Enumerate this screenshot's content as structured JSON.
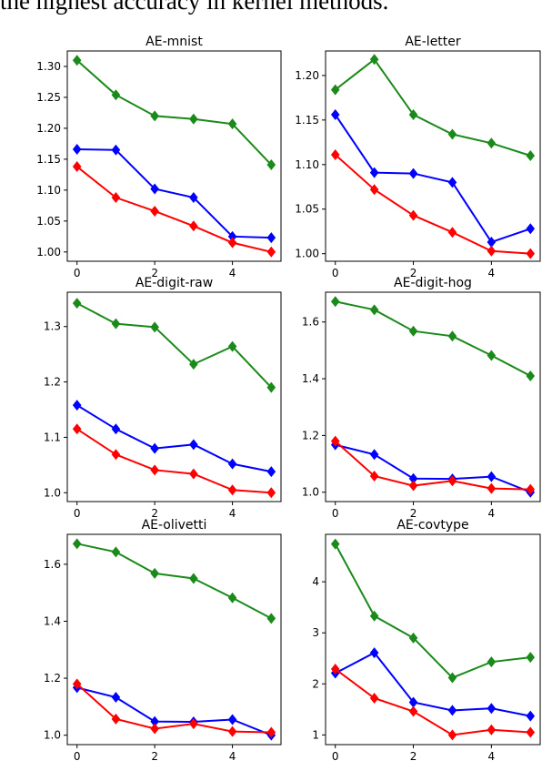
{
  "header_text": "the highest accuracy in kernel methods.",
  "colors": {
    "green": "#1a8a1a",
    "blue": "#0000ff",
    "red": "#ff0000"
  },
  "chart_data": [
    {
      "type": "line",
      "title": "AE-mnist",
      "x": [
        0,
        1,
        2,
        3,
        4,
        5
      ],
      "xticks": [
        "0",
        "2",
        "4"
      ],
      "xlim": [
        -0.25,
        5.25
      ],
      "ylim": [
        0.985,
        1.325
      ],
      "yticks": [
        "1.00",
        "1.05",
        "1.10",
        "1.15",
        "1.20",
        "1.25",
        "1.30"
      ],
      "series": [
        {
          "color": "green",
          "values": [
            1.31,
            1.254,
            1.22,
            1.215,
            1.207,
            1.141
          ]
        },
        {
          "color": "blue",
          "values": [
            1.166,
            1.165,
            1.102,
            1.088,
            1.025,
            1.023
          ]
        },
        {
          "color": "red",
          "values": [
            1.138,
            1.088,
            1.066,
            1.042,
            1.015,
            1.0
          ]
        }
      ]
    },
    {
      "type": "line",
      "title": "AE-letter",
      "x": [
        0,
        1,
        2,
        3,
        4,
        5
      ],
      "xticks": [
        "0",
        "2",
        "4"
      ],
      "xlim": [
        -0.25,
        5.25
      ],
      "ylim": [
        0.9915,
        1.2275
      ],
      "yticks": [
        "1.00",
        "1.05",
        "1.10",
        "1.15",
        "1.20"
      ],
      "series": [
        {
          "color": "green",
          "values": [
            1.184,
            1.218,
            1.156,
            1.134,
            1.124,
            1.11
          ]
        },
        {
          "color": "blue",
          "values": [
            1.156,
            1.091,
            1.09,
            1.08,
            1.013,
            1.028
          ]
        },
        {
          "color": "red",
          "values": [
            1.111,
            1.072,
            1.043,
            1.024,
            1.003,
            1.0
          ]
        }
      ]
    },
    {
      "type": "line",
      "title": "AE-digit-raw",
      "x": [
        0,
        1,
        2,
        3,
        4,
        5
      ],
      "xticks": [
        "0",
        "2",
        "4"
      ],
      "xlim": [
        -0.25,
        5.25
      ],
      "ylim": [
        0.984,
        1.362
      ],
      "yticks": [
        "1.0",
        "1.1",
        "1.2",
        "1.3"
      ],
      "series": [
        {
          "color": "green",
          "values": [
            1.342,
            1.305,
            1.299,
            1.232,
            1.264,
            1.19
          ]
        },
        {
          "color": "blue",
          "values": [
            1.158,
            1.115,
            1.08,
            1.087,
            1.052,
            1.038
          ]
        },
        {
          "color": "red",
          "values": [
            1.115,
            1.069,
            1.041,
            1.034,
            1.005,
            1.0
          ]
        }
      ]
    },
    {
      "type": "line",
      "title": "AE-digit-hog",
      "x": [
        0,
        1,
        2,
        3,
        4,
        5
      ],
      "xticks": [
        "0",
        "2",
        "4"
      ],
      "xlim": [
        -0.25,
        5.25
      ],
      "ylim": [
        0.967,
        1.705
      ],
      "yticks": [
        "1.0",
        "1.2",
        "1.4",
        "1.6"
      ],
      "series": [
        {
          "color": "green",
          "values": [
            1.672,
            1.643,
            1.568,
            1.55,
            1.482,
            1.41
          ]
        },
        {
          "color": "blue",
          "values": [
            1.167,
            1.133,
            1.048,
            1.047,
            1.055,
            1.0
          ]
        },
        {
          "color": "red",
          "values": [
            1.18,
            1.057,
            1.023,
            1.04,
            1.013,
            1.01
          ]
        }
      ]
    },
    {
      "type": "line",
      "title": "AE-olivetti",
      "x": [
        0,
        1,
        2,
        3,
        4,
        5
      ],
      "xticks": [
        "0",
        "2",
        "4"
      ],
      "xlim": [
        -0.25,
        5.25
      ],
      "ylim": [
        0.967,
        1.705
      ],
      "yticks": [
        "1.0",
        "1.2",
        "1.4",
        "1.6"
      ],
      "series": [
        {
          "color": "green",
          "values": [
            1.672,
            1.643,
            1.568,
            1.55,
            1.482,
            1.41
          ]
        },
        {
          "color": "blue",
          "values": [
            1.167,
            1.133,
            1.048,
            1.047,
            1.055,
            1.0
          ]
        },
        {
          "color": "red",
          "values": [
            1.18,
            1.057,
            1.023,
            1.04,
            1.013,
            1.01
          ]
        }
      ]
    },
    {
      "type": "line",
      "title": "AE-covtype",
      "x": [
        0,
        1,
        2,
        3,
        4,
        5
      ],
      "xticks": [
        "0",
        "2",
        "4"
      ],
      "xlim": [
        -0.25,
        5.25
      ],
      "ylim": [
        0.81,
        4.93
      ],
      "yticks": [
        "1",
        "2",
        "3",
        "4"
      ],
      "series": [
        {
          "color": "green",
          "values": [
            4.74,
            3.33,
            2.9,
            2.12,
            2.43,
            2.52
          ]
        },
        {
          "color": "blue",
          "values": [
            2.21,
            2.61,
            1.64,
            1.48,
            1.52,
            1.37
          ]
        },
        {
          "color": "red",
          "values": [
            2.29,
            1.72,
            1.46,
            1.0,
            1.1,
            1.05
          ]
        }
      ]
    }
  ]
}
